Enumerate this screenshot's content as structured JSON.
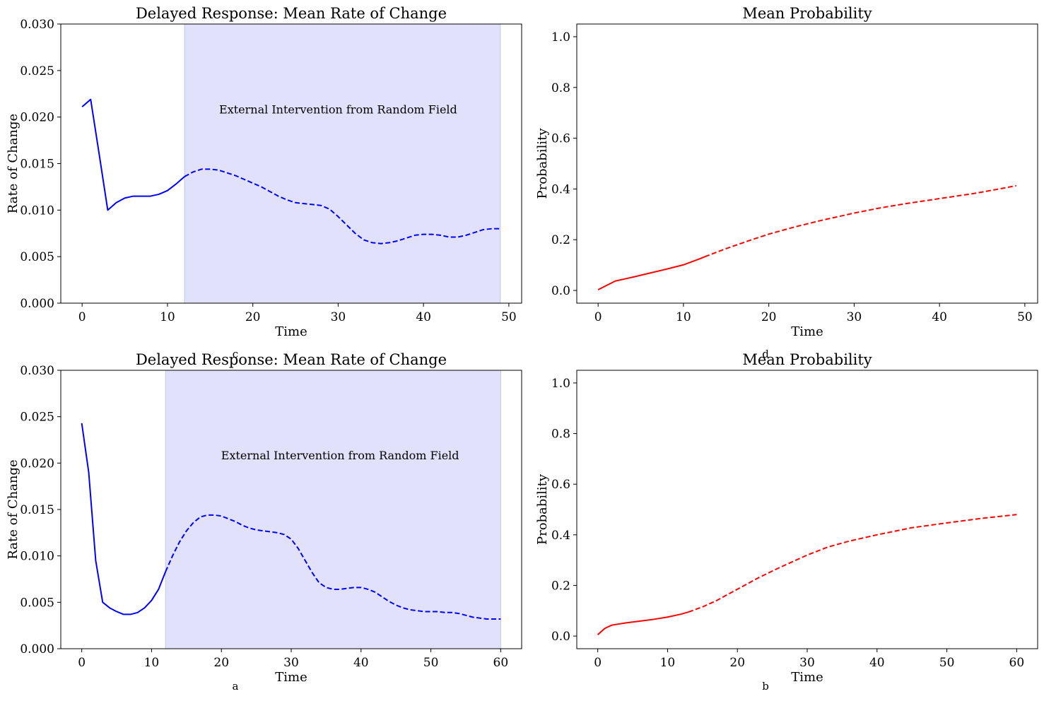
{
  "chart_data": [
    {
      "type": "line",
      "title": "Delayed Response: Mean Rate of Change",
      "xlabel": "Time",
      "ylabel": "Rate of Change",
      "xlim": [
        -2.5,
        51.5
      ],
      "ylim": [
        0.0,
        0.03
      ],
      "xticks": [
        0,
        10,
        20,
        30,
        40,
        50
      ],
      "yticks": [
        0.0,
        0.005,
        0.01,
        0.015,
        0.02,
        0.025,
        0.03
      ],
      "ytick_labels": [
        "0.000",
        "0.005",
        "0.010",
        "0.015",
        "0.020",
        "0.025",
        "0.030"
      ],
      "shaded_region": {
        "x_start": 12,
        "x_end": 49,
        "color": "#e1e1fb"
      },
      "annotation": {
        "text": "External Intervention from Random Field",
        "x": 30,
        "y": 0.0204
      },
      "subplot_label": "c",
      "series": [
        {
          "style": "solid",
          "color": "#0000ff",
          "points": [
            [
              0,
              0.0211
            ],
            [
              1,
              0.0219
            ],
            [
              2,
              0.016
            ],
            [
              3,
              0.01
            ],
            [
              4,
              0.0108
            ],
            [
              5,
              0.0113
            ],
            [
              6,
              0.0115
            ],
            [
              7,
              0.0115
            ],
            [
              8,
              0.0115
            ],
            [
              9,
              0.0117
            ],
            [
              10,
              0.0121
            ],
            [
              11,
              0.0128
            ],
            [
              12,
              0.0136
            ]
          ]
        },
        {
          "style": "dashed",
          "color": "#0000ff",
          "points": [
            [
              12,
              0.0136
            ],
            [
              13,
              0.0141
            ],
            [
              14,
              0.0144
            ],
            [
              15,
              0.0144
            ],
            [
              16,
              0.0143
            ],
            [
              17,
              0.014
            ],
            [
              18,
              0.0137
            ],
            [
              19,
              0.0133
            ],
            [
              20,
              0.0129
            ],
            [
              21,
              0.0125
            ],
            [
              22,
              0.012
            ],
            [
              23,
              0.0115
            ],
            [
              24,
              0.0111
            ],
            [
              25,
              0.0108
            ],
            [
              26,
              0.0107
            ],
            [
              27,
              0.0106
            ],
            [
              28,
              0.0105
            ],
            [
              29,
              0.0101
            ],
            [
              30,
              0.0093
            ],
            [
              31,
              0.0084
            ],
            [
              32,
              0.0075
            ],
            [
              33,
              0.0068
            ],
            [
              34,
              0.0065
            ],
            [
              35,
              0.0064
            ],
            [
              36,
              0.0065
            ],
            [
              37,
              0.0067
            ],
            [
              38,
              0.007
            ],
            [
              39,
              0.0073
            ],
            [
              40,
              0.0074
            ],
            [
              41,
              0.0074
            ],
            [
              42,
              0.0073
            ],
            [
              43,
              0.0071
            ],
            [
              44,
              0.0071
            ],
            [
              45,
              0.0073
            ],
            [
              46,
              0.0076
            ],
            [
              47,
              0.0079
            ],
            [
              48,
              0.008
            ],
            [
              49,
              0.008
            ]
          ]
        }
      ]
    },
    {
      "type": "line",
      "title": "Mean Probability",
      "xlabel": "Time",
      "ylabel": "Probability",
      "xlim": [
        -2.5,
        51.5
      ],
      "ylim": [
        -0.05,
        1.05
      ],
      "xticks": [
        0,
        10,
        20,
        30,
        40,
        50
      ],
      "yticks": [
        0.0,
        0.2,
        0.4,
        0.6,
        0.8,
        1.0
      ],
      "ytick_labels": [
        "0.0",
        "0.2",
        "0.4",
        "0.6",
        "0.8",
        "1.0"
      ],
      "subplot_label": "d",
      "series": [
        {
          "style": "solid",
          "color": "#ff0000",
          "points": [
            [
              0,
              0.003
            ],
            [
              1,
              0.02
            ],
            [
              2,
              0.037
            ],
            [
              4,
              0.052
            ],
            [
              6,
              0.068
            ],
            [
              8,
              0.084
            ],
            [
              10,
              0.101
            ],
            [
              12,
              0.126
            ],
            [
              12.5,
              0.133
            ]
          ]
        },
        {
          "style": "dashed",
          "color": "#ff0000",
          "points": [
            [
              12.5,
              0.133
            ],
            [
              15,
              0.165
            ],
            [
              18,
              0.2
            ],
            [
              20,
              0.222
            ],
            [
              23,
              0.25
            ],
            [
              26,
              0.275
            ],
            [
              30,
              0.305
            ],
            [
              33,
              0.325
            ],
            [
              36,
              0.342
            ],
            [
              40,
              0.362
            ],
            [
              44,
              0.382
            ],
            [
              47,
              0.4
            ],
            [
              49,
              0.413
            ]
          ]
        }
      ]
    },
    {
      "type": "line",
      "title": "Delayed Response: Mean Rate of Change",
      "xlabel": "Time",
      "ylabel": "Rate of Change",
      "xlim": [
        -3,
        63
      ],
      "ylim": [
        0.0,
        0.03
      ],
      "xticks": [
        0,
        10,
        20,
        30,
        40,
        50,
        60
      ],
      "yticks": [
        0.0,
        0.005,
        0.01,
        0.015,
        0.02,
        0.025,
        0.03
      ],
      "ytick_labels": [
        "0.000",
        "0.005",
        "0.010",
        "0.015",
        "0.020",
        "0.025",
        "0.030"
      ],
      "shaded_region": {
        "x_start": 12,
        "x_end": 60,
        "color": "#e1e1fb"
      },
      "annotation": {
        "text": "External Intervention from Random Field",
        "x": 37,
        "y": 0.0204
      },
      "subplot_label": "a",
      "series": [
        {
          "style": "solid",
          "color": "#0000ff",
          "points": [
            [
              0,
              0.0243
            ],
            [
              1,
              0.019
            ],
            [
              2,
              0.0095
            ],
            [
              3,
              0.005
            ],
            [
              4,
              0.0044
            ],
            [
              5,
              0.004
            ],
            [
              6,
              0.0037
            ],
            [
              7,
              0.0037
            ],
            [
              8,
              0.0039
            ],
            [
              9,
              0.0044
            ],
            [
              10,
              0.0052
            ],
            [
              11,
              0.0064
            ],
            [
              12,
              0.0083
            ]
          ]
        },
        {
          "style": "dashed",
          "color": "#0000ff",
          "points": [
            [
              12,
              0.0083
            ],
            [
              13,
              0.01
            ],
            [
              14,
              0.0115
            ],
            [
              15,
              0.0127
            ],
            [
              16,
              0.0136
            ],
            [
              17,
              0.0142
            ],
            [
              18,
              0.0144
            ],
            [
              19,
              0.0144
            ],
            [
              20,
              0.0143
            ],
            [
              21,
              0.014
            ],
            [
              22,
              0.0137
            ],
            [
              23,
              0.0133
            ],
            [
              24,
              0.013
            ],
            [
              25,
              0.0128
            ],
            [
              26,
              0.0127
            ],
            [
              27,
              0.0126
            ],
            [
              28,
              0.0125
            ],
            [
              29,
              0.0123
            ],
            [
              30,
              0.0118
            ],
            [
              31,
              0.0108
            ],
            [
              32,
              0.0095
            ],
            [
              33,
              0.0082
            ],
            [
              34,
              0.0071
            ],
            [
              35,
              0.0066
            ],
            [
              36,
              0.0064
            ],
            [
              37,
              0.0064
            ],
            [
              38,
              0.0065
            ],
            [
              39,
              0.0066
            ],
            [
              40,
              0.0066
            ],
            [
              41,
              0.0064
            ],
            [
              42,
              0.0061
            ],
            [
              43,
              0.0056
            ],
            [
              44,
              0.0051
            ],
            [
              45,
              0.0047
            ],
            [
              46,
              0.0044
            ],
            [
              47,
              0.0042
            ],
            [
              48,
              0.0041
            ],
            [
              49,
              0.004
            ],
            [
              50,
              0.004
            ],
            [
              51,
              0.004
            ],
            [
              52,
              0.0039
            ],
            [
              53,
              0.0039
            ],
            [
              54,
              0.0038
            ],
            [
              55,
              0.0036
            ],
            [
              56,
              0.0034
            ],
            [
              57,
              0.0033
            ],
            [
              58,
              0.0032
            ],
            [
              59,
              0.0032
            ],
            [
              60,
              0.0032
            ]
          ]
        }
      ]
    },
    {
      "type": "line",
      "title": "Mean Probability",
      "xlabel": "Time",
      "ylabel": "Probability",
      "xlim": [
        -3,
        63
      ],
      "ylim": [
        -0.05,
        1.05
      ],
      "xticks": [
        0,
        10,
        20,
        30,
        40,
        50,
        60
      ],
      "yticks": [
        0.0,
        0.2,
        0.4,
        0.6,
        0.8,
        1.0
      ],
      "ytick_labels": [
        "0.0",
        "0.2",
        "0.4",
        "0.6",
        "0.8",
        "1.0"
      ],
      "subplot_label": "b",
      "series": [
        {
          "style": "solid",
          "color": "#ff0000",
          "points": [
            [
              0,
              0.005
            ],
            [
              1,
              0.03
            ],
            [
              2,
              0.043
            ],
            [
              4,
              0.052
            ],
            [
              6,
              0.059
            ],
            [
              8,
              0.066
            ],
            [
              10,
              0.075
            ],
            [
              12,
              0.087
            ],
            [
              13,
              0.095
            ]
          ]
        },
        {
          "style": "dashed",
          "color": "#ff0000",
          "points": [
            [
              13,
              0.095
            ],
            [
              15,
              0.115
            ],
            [
              17,
              0.14
            ],
            [
              20,
              0.185
            ],
            [
              23,
              0.23
            ],
            [
              26,
              0.27
            ],
            [
              30,
              0.32
            ],
            [
              33,
              0.352
            ],
            [
              36,
              0.375
            ],
            [
              40,
              0.4
            ],
            [
              45,
              0.428
            ],
            [
              50,
              0.447
            ],
            [
              55,
              0.465
            ],
            [
              60,
              0.48
            ]
          ]
        }
      ]
    }
  ]
}
